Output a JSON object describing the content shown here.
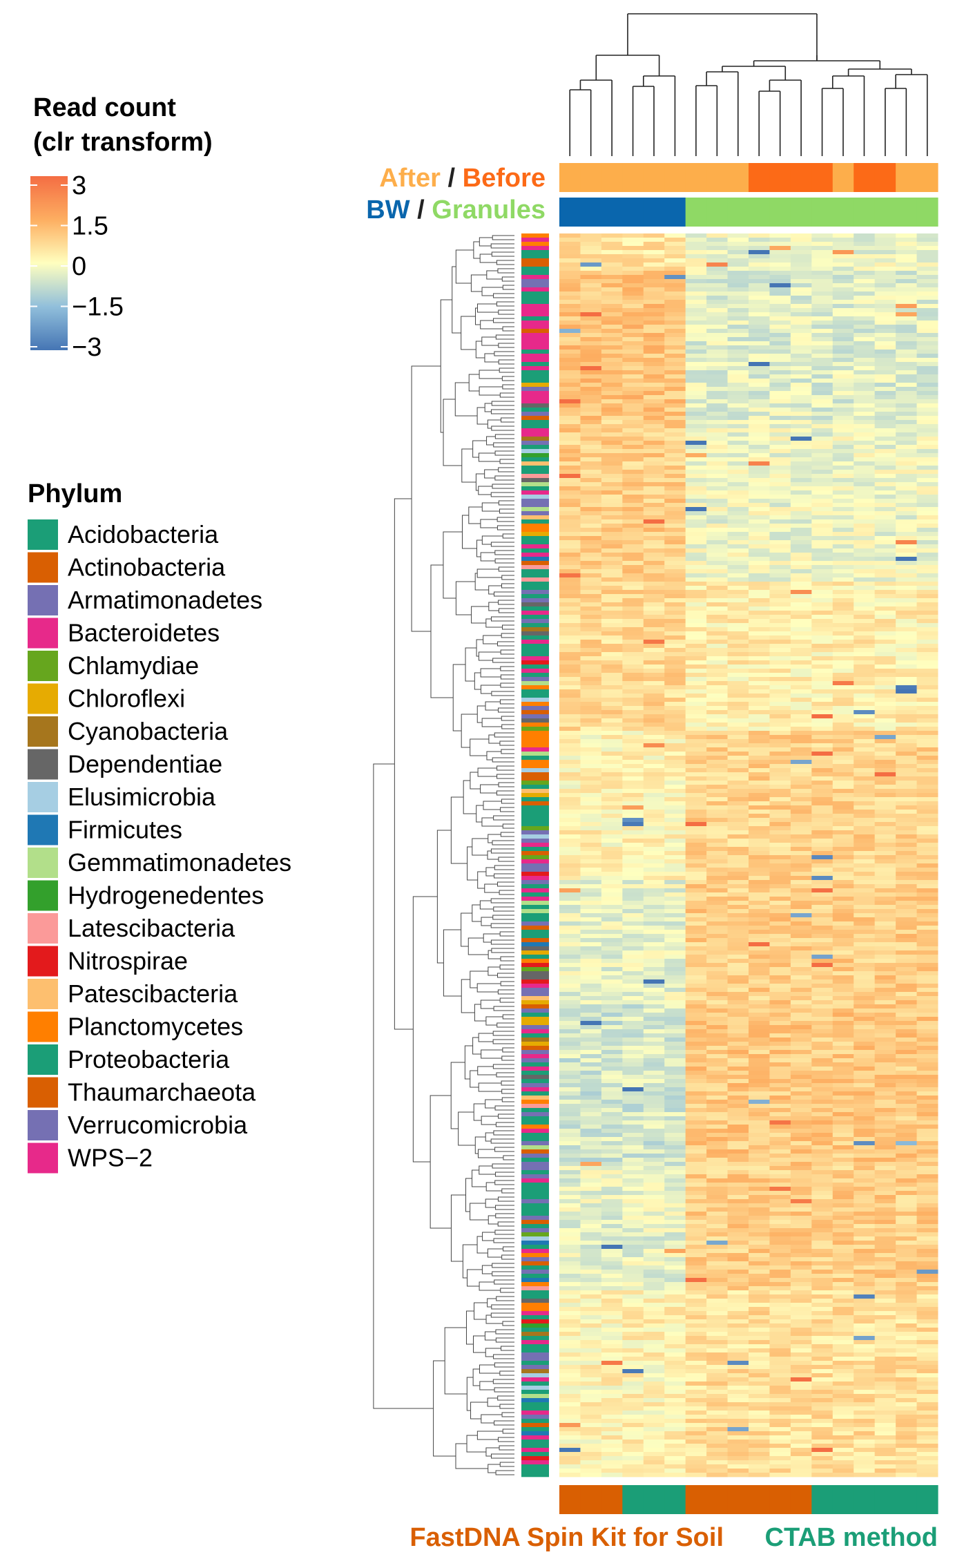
{
  "chart_data": {
    "type": "heatmap",
    "color_legend": {
      "title_line1": "Read count",
      "title_line2": "(clr transform)",
      "ticks": [
        "3",
        "1.5",
        "0",
        "−1.5",
        "−3"
      ],
      "range": [
        -3,
        3
      ],
      "colors": [
        "#4575b4",
        "#91bfdb",
        "#ffffbf",
        "#fdae61",
        "#f46d43"
      ]
    },
    "phylum_legend": {
      "title": "Phylum",
      "items": [
        {
          "label": "Acidobacteria",
          "color": "#1b9e77"
        },
        {
          "label": "Actinobacteria",
          "color": "#d95f02"
        },
        {
          "label": "Armatimonadetes",
          "color": "#7570b3"
        },
        {
          "label": "Bacteroidetes",
          "color": "#e7298a"
        },
        {
          "label": "Chlamydiae",
          "color": "#66a61e"
        },
        {
          "label": "Chloroflexi",
          "color": "#e6ab02"
        },
        {
          "label": "Cyanobacteria",
          "color": "#a6761d"
        },
        {
          "label": "Dependentiae",
          "color": "#666666"
        },
        {
          "label": "Elusimicrobia",
          "color": "#a6cee3"
        },
        {
          "label": "Firmicutes",
          "color": "#1f78b4"
        },
        {
          "label": "Gemmatimonadetes",
          "color": "#b2df8a"
        },
        {
          "label": "Hydrogenedentes",
          "color": "#33a02c"
        },
        {
          "label": "Latescibacteria",
          "color": "#fb9a99"
        },
        {
          "label": "Nitrospirae",
          "color": "#e31a1c"
        },
        {
          "label": "Patescibacteria",
          "color": "#fdbf6f"
        },
        {
          "label": "Planctomycetes",
          "color": "#ff7f00"
        },
        {
          "label": "Proteobacteria",
          "color": "#1b9e77"
        },
        {
          "label": "Thaumarchaeota",
          "color": "#d95f02"
        },
        {
          "label": "Verrucomicrobia",
          "color": "#7570b3"
        },
        {
          "label": "WPS−2",
          "color": "#e7298a"
        }
      ]
    },
    "annotations": {
      "after_before": {
        "label_after": "After",
        "label_sep": " / ",
        "label_before": "Before",
        "color_after": "#fdae4b",
        "color_before": "#fc6a17",
        "columns": [
          "After",
          "After",
          "After",
          "After",
          "After",
          "After",
          "After",
          "After",
          "After",
          "Before",
          "Before",
          "Before",
          "Before",
          "After",
          "Before",
          "Before",
          "After",
          "After"
        ]
      },
      "bw_granules": {
        "label_bw": "BW",
        "label_sep": " / ",
        "label_granules": "Granules",
        "color_bw": "#0a66ad",
        "color_granules": "#8fd965",
        "columns": [
          "BW",
          "BW",
          "BW",
          "BW",
          "BW",
          "BW",
          "Granules",
          "Granules",
          "Granules",
          "Granules",
          "Granules",
          "Granules",
          "Granules",
          "Granules",
          "Granules",
          "Granules",
          "Granules",
          "Granules"
        ]
      },
      "method": {
        "label_fastdna": "FastDNA Spin Kit for Soil",
        "label_ctab": "CTAB method",
        "color_fastdna": "#d95f02",
        "color_ctab": "#1b9e77",
        "segments": [
          "FastDNA",
          "FastDNA",
          "FastDNA",
          "CTAB",
          "CTAB",
          "CTAB",
          "FastDNA",
          "FastDNA",
          "FastDNA",
          "FastDNA",
          "FastDNA",
          "FastDNA",
          "CTAB",
          "CTAB",
          "CTAB",
          "CTAB",
          "CTAB",
          "CTAB"
        ]
      }
    },
    "n_columns": 18,
    "n_rows": 300,
    "row_blocks": [
      {
        "from": 0.0,
        "to": 0.03,
        "left": 0.5,
        "right": -0.2
      },
      {
        "from": 0.03,
        "to": 0.15,
        "left": 1.1,
        "right": -0.4
      },
      {
        "from": 0.15,
        "to": 0.28,
        "left": 0.9,
        "right": -0.2
      },
      {
        "from": 0.28,
        "to": 0.4,
        "left": 0.7,
        "right": 0.3
      },
      {
        "from": 0.4,
        "to": 0.52,
        "left": 0.2,
        "right": 0.8
      },
      {
        "from": 0.52,
        "to": 0.62,
        "left": -0.3,
        "right": 0.9
      },
      {
        "from": 0.62,
        "to": 0.75,
        "left": -0.6,
        "right": 1.0
      },
      {
        "from": 0.75,
        "to": 0.85,
        "left": -0.3,
        "right": 0.9
      },
      {
        "from": 0.85,
        "to": 1.0,
        "left": 0.2,
        "right": 0.6
      }
    ]
  }
}
